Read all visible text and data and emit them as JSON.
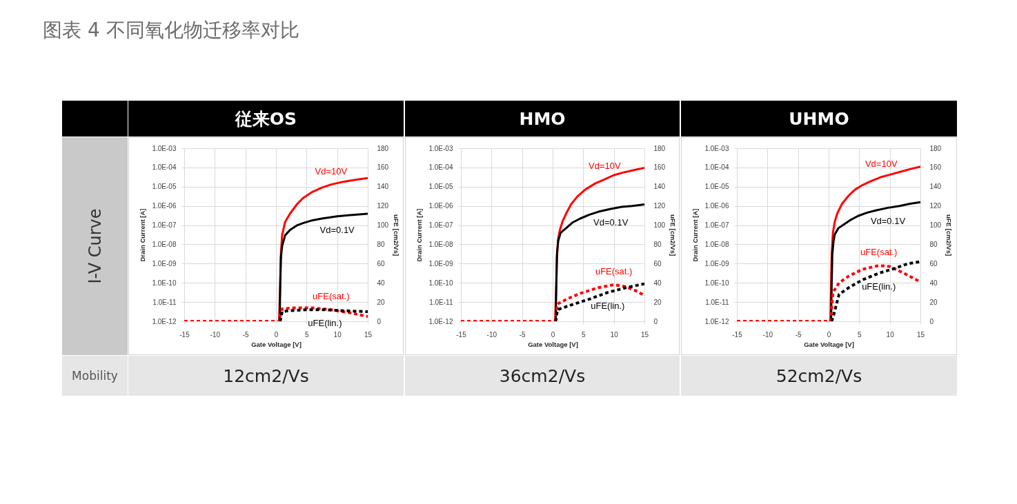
{
  "chart_data": [
    {
      "type": "other",
      "title": "图表 4 不同氧化物迁移率对比",
      "annotations": [
        "I-V Curve",
        "Mobility"
      ]
    },
    {
      "type": "line",
      "title": "従来OS",
      "xlabel": "Gate Voltage [V]",
      "ylabel": "Drain Current [A]",
      "y2label": "uFE [cm2/Vs]",
      "annotations": [
        "12cm2/Vs"
      ],
      "xlim": [
        -15,
        15
      ],
      "xticks": [
        -15,
        -10,
        -5,
        0,
        5,
        10,
        15
      ],
      "ylim": [
        1e-12,
        0.001
      ],
      "yticks": [
        {
          "value": 1e-12,
          "label": "1.0E-12"
        },
        {
          "value": 1e-11,
          "label": "1.0E-11"
        },
        {
          "value": 1e-10,
          "label": "1.0E-10"
        },
        {
          "value": 1e-09,
          "label": "1.0E-09"
        },
        {
          "value": 1e-08,
          "label": "1.0E-08"
        },
        {
          "value": 1e-07,
          "label": "1.0E-07"
        },
        {
          "value": 1e-06,
          "label": "1.0E-06"
        },
        {
          "value": 1e-05,
          "label": "1.0E-05"
        },
        {
          "value": 0.0001,
          "label": "1.0E-04"
        },
        {
          "value": 0.001,
          "label": "1.0E-03"
        }
      ],
      "y2lim": [
        0,
        180
      ],
      "y2ticks": [
        0,
        20,
        40,
        60,
        80,
        100,
        120,
        140,
        160,
        180
      ],
      "log": "y",
      "grid": true,
      "series": [
        {
          "name": "Vd=10V",
          "color": "#ff0000",
          "x": [
            0.5,
            0.6,
            0.7,
            0.8,
            1.0,
            1.5,
            2.3,
            3.5,
            4.5,
            6,
            7.5,
            9,
            11,
            13,
            15
          ],
          "values": [
            1e-12,
            1e-11,
            1e-10,
            3e-09,
            3e-08,
            1.5e-07,
            4e-07,
            1.3e-06,
            2.7e-06,
            5.5e-06,
            9e-06,
            1.3e-05,
            1.8e-05,
            2.3e-05,
            2.8e-05
          ]
        },
        {
          "name": "Vd=0.1V",
          "color": "#000000",
          "x": [
            0.6,
            0.7,
            0.8,
            1.0,
            1.5,
            2.3,
            3.5,
            4.5,
            6,
            7.5,
            10,
            12.5,
            15
          ],
          "values": [
            1e-12,
            1e-10,
            2e-09,
            8e-09,
            3e-08,
            5.6e-08,
            1e-07,
            1.3e-07,
            1.8e-07,
            2.2e-07,
            2.9e-07,
            3.4e-07,
            3.9e-07
          ]
        },
        {
          "name": "uFE(sat.)",
          "color": "#ff0000",
          "axis": "y2",
          "line_style": "dashed",
          "x": [
            -15,
            0.5,
            0.8,
            1,
            3,
            6,
            9,
            12,
            15
          ],
          "values": [
            0,
            0,
            10,
            13,
            14,
            14,
            12,
            9,
            5
          ]
        },
        {
          "name": "uFE(lin.)",
          "color": "#000000",
          "axis": "y2",
          "line_style": "dashed",
          "x": [
            0.7,
            1,
            2,
            5,
            8,
            11,
            15
          ],
          "values": [
            0,
            10,
            11,
            12,
            12,
            11,
            10
          ]
        }
      ]
    },
    {
      "type": "line",
      "title": "HMO",
      "xlabel": "Gate Voltage [V]",
      "ylabel": "Drain Current [A]",
      "y2label": "uFE [cm2/Vs]",
      "annotations": [
        "36cm2/Vs"
      ],
      "xlim": [
        -15,
        15
      ],
      "xticks": [
        -15,
        -10,
        -5,
        0,
        5,
        10,
        15
      ],
      "ylim": [
        1e-12,
        0.001
      ],
      "yticks": [
        {
          "value": 1e-12,
          "label": "1.0E-12"
        },
        {
          "value": 1e-11,
          "label": "1.0E-11"
        },
        {
          "value": 1e-10,
          "label": "1.0E-10"
        },
        {
          "value": 1e-09,
          "label": "1.0E-09"
        },
        {
          "value": 1e-08,
          "label": "1.0E-08"
        },
        {
          "value": 1e-07,
          "label": "1.0E-07"
        },
        {
          "value": 1e-06,
          "label": "1.0E-06"
        },
        {
          "value": 1e-05,
          "label": "1.0E-05"
        },
        {
          "value": 0.0001,
          "label": "1.0E-04"
        },
        {
          "value": 0.001,
          "label": "1.0E-03"
        }
      ],
      "y2lim": [
        0,
        180
      ],
      "y2ticks": [
        0,
        20,
        40,
        60,
        80,
        100,
        120,
        140,
        160,
        180
      ],
      "log": "y",
      "grid": true,
      "series": [
        {
          "name": "Vd=10V",
          "color": "#ff0000",
          "x": [
            0.4,
            0.5,
            0.6,
            0.7,
            0.9,
            1.2,
            1.6,
            2.2,
            3,
            4,
            5.3,
            7,
            8.5,
            10,
            11.6,
            13,
            15
          ],
          "values": [
            1e-12,
            1e-11,
            1e-10,
            2e-09,
            2e-08,
            6e-08,
            1.5e-07,
            4e-07,
            1.2e-06,
            3e-06,
            7e-06,
            1.5e-05,
            2.4e-05,
            4e-05,
            5.5e-05,
            7e-05,
            9.5e-05
          ]
        },
        {
          "name": "Vd=0.1V",
          "color": "#000000",
          "x": [
            0.5,
            0.6,
            0.7,
            0.9,
            1.3,
            2.3,
            3.3,
            4.5,
            6,
            7.5,
            9.5,
            11.3,
            13,
            15
          ],
          "values": [
            1e-12,
            1e-10,
            3e-09,
            1.5e-08,
            4e-08,
            7.5e-08,
            1.4e-07,
            2.2e-07,
            3.5e-07,
            5e-07,
            7e-07,
            9e-07,
            1e-06,
            1.2e-06
          ]
        },
        {
          "name": "uFE(sat.)",
          "color": "#ff0000",
          "axis": "y2",
          "line_style": "dashed",
          "x": [
            -15,
            0.4,
            0.6,
            0.8,
            2.3,
            4.5,
            7.5,
            10,
            12,
            13.5,
            15
          ],
          "values": [
            0,
            0,
            10,
            18,
            23,
            29,
            35,
            38,
            36,
            32,
            27
          ]
        },
        {
          "name": "uFE(lin.)",
          "color": "#000000",
          "axis": "y2",
          "line_style": "dashed",
          "x": [
            0.5,
            0.8,
            3,
            6,
            9,
            12,
            15
          ],
          "values": [
            0,
            12,
            17,
            23,
            30,
            35,
            39
          ]
        }
      ]
    },
    {
      "type": "line",
      "title": "UHMO",
      "xlabel": "Gate Voltage [V]",
      "ylabel": "Drain Current [A]",
      "y2label": "uFE [cm2/Vs]",
      "annotations": [
        "52cm2/Vs"
      ],
      "xlim": [
        -15,
        15
      ],
      "xticks": [
        -15,
        -10,
        -5,
        0,
        5,
        10,
        15
      ],
      "ylim": [
        1e-12,
        0.001
      ],
      "yticks": [
        {
          "value": 1e-12,
          "label": "1.0E-12"
        },
        {
          "value": 1e-11,
          "label": "1.0E-11"
        },
        {
          "value": 1e-10,
          "label": "1.0E-10"
        },
        {
          "value": 1e-09,
          "label": "1.0E-09"
        },
        {
          "value": 1e-08,
          "label": "1.0E-08"
        },
        {
          "value": 1e-07,
          "label": "1.0E-07"
        },
        {
          "value": 1e-06,
          "label": "1.0E-06"
        },
        {
          "value": 1e-05,
          "label": "1.0E-05"
        },
        {
          "value": 0.0001,
          "label": "1.0E-04"
        },
        {
          "value": 0.001,
          "label": "1.0E-03"
        }
      ],
      "y2lim": [
        0,
        180
      ],
      "y2ticks": [
        0,
        20,
        40,
        60,
        80,
        100,
        120,
        140,
        160,
        180
      ],
      "log": "y",
      "grid": true,
      "series": [
        {
          "name": "Vd=10V",
          "color": "#ff0000",
          "x": [
            0.3,
            0.4,
            0.5,
            0.7,
            1,
            1.4,
            2.2,
            3.3,
            4.3,
            5.5,
            7,
            8.6,
            10,
            12,
            13.5,
            15
          ],
          "values": [
            1e-12,
            1e-10,
            3e-09,
            4e-08,
            1.5e-07,
            4e-07,
            1.3e-06,
            3.5e-06,
            7e-06,
            1.2e-05,
            2e-05,
            3.2e-05,
            4.2e-05,
            6.3e-05,
            8.5e-05,
            0.00011
          ]
        },
        {
          "name": "Vd=0.1V",
          "color": "#000000",
          "x": [
            0.4,
            0.5,
            0.6,
            0.8,
            1,
            1.6,
            2.5,
            3.5,
            4.8,
            6.3,
            7.8,
            9.7,
            11.6,
            13.3,
            15
          ],
          "values": [
            1e-12,
            1e-10,
            3e-09,
            1.5e-08,
            3.3e-08,
            7e-08,
            1.1e-07,
            1.8e-07,
            3e-07,
            4.5e-07,
            5.9e-07,
            8e-07,
            1e-06,
            1.3e-06,
            1.55e-06
          ]
        },
        {
          "name": "uFE(sat.)",
          "color": "#ff0000",
          "axis": "y2",
          "line_style": "dashed",
          "x": [
            -15,
            0.3,
            0.5,
            0.7,
            1.7,
            3.3,
            5.5,
            8.2,
            10,
            12,
            13.5,
            15
          ],
          "values": [
            0,
            0,
            15,
            30,
            40,
            47,
            54,
            58,
            57,
            51,
            46,
            41
          ]
        },
        {
          "name": "uFE(lin.)",
          "color": "#000000",
          "axis": "y2",
          "line_style": "dashed",
          "x": [
            0.5,
            0.8,
            1.7,
            3.3,
            5.5,
            8.2,
            10.8,
            13,
            15
          ],
          "values": [
            0,
            6,
            28,
            35,
            43,
            50,
            55,
            60,
            62
          ]
        }
      ]
    }
  ]
}
